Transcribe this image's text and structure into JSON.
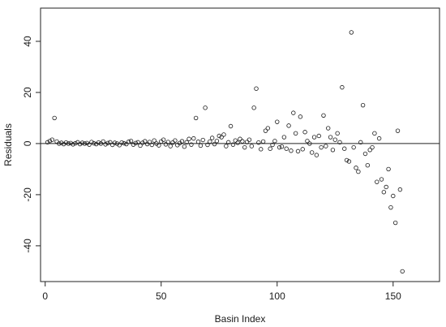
{
  "chart_data": {
    "type": "scatter",
    "title": "",
    "xlabel": "Basin Index",
    "ylabel": "Residuals",
    "xlim": [
      -2,
      170
    ],
    "ylim": [
      -54,
      53
    ],
    "grid": false,
    "legend": "none",
    "marker": "open-circle",
    "reference_line_y": 0,
    "x_ticks": [
      0,
      50,
      100,
      150
    ],
    "x_tick_labels": [
      "0",
      "50",
      "100",
      "150"
    ],
    "y_ticks": [
      -40,
      -20,
      0,
      20,
      40
    ],
    "y_tick_labels": [
      "-40",
      "-20",
      "0",
      "20",
      "40"
    ],
    "series": [
      {
        "points": [
          [
            1,
            0.5
          ],
          [
            2,
            1.0
          ],
          [
            3,
            1.5
          ],
          [
            4,
            10.0
          ],
          [
            5,
            0.8
          ],
          [
            6,
            0.0
          ],
          [
            7,
            0.3
          ],
          [
            8,
            -0.2
          ],
          [
            9,
            0.4
          ],
          [
            10,
            0.0
          ],
          [
            11,
            0.2
          ],
          [
            12,
            -0.3
          ],
          [
            13,
            0.1
          ],
          [
            14,
            0.5
          ],
          [
            15,
            -0.2
          ],
          [
            16,
            0.3
          ],
          [
            17,
            0.0
          ],
          [
            18,
            0.2
          ],
          [
            19,
            -0.4
          ],
          [
            20,
            0.6
          ],
          [
            21,
            0.1
          ],
          [
            22,
            -0.2
          ],
          [
            23,
            0.4
          ],
          [
            24,
            0.0
          ],
          [
            25,
            0.8
          ],
          [
            26,
            -0.3
          ],
          [
            27,
            0.2
          ],
          [
            28,
            0.5
          ],
          [
            29,
            -0.5
          ],
          [
            30,
            0.3
          ],
          [
            31,
            0.0
          ],
          [
            32,
            -0.6
          ],
          [
            33,
            0.4
          ],
          [
            34,
            0.1
          ],
          [
            35,
            -0.2
          ],
          [
            36,
            0.7
          ],
          [
            37,
            1.0
          ],
          [
            38,
            -0.4
          ],
          [
            39,
            0.2
          ],
          [
            40,
            0.5
          ],
          [
            41,
            -0.8
          ],
          [
            42,
            0.3
          ],
          [
            43,
            0.9
          ],
          [
            44,
            -0.2
          ],
          [
            45,
            0.6
          ],
          [
            46,
            -0.5
          ],
          [
            47,
            1.2
          ],
          [
            48,
            0.0
          ],
          [
            49,
            -0.7
          ],
          [
            50,
            0.8
          ],
          [
            51,
            1.5
          ],
          [
            52,
            -0.3
          ],
          [
            53,
            0.6
          ],
          [
            54,
            -1.0
          ],
          [
            55,
            0.4
          ],
          [
            56,
            1.2
          ],
          [
            57,
            -0.6
          ],
          [
            58,
            0.2
          ],
          [
            59,
            0.9
          ],
          [
            60,
            -1.2
          ],
          [
            61,
            0.5
          ],
          [
            62,
            1.8
          ],
          [
            63,
            -0.4
          ],
          [
            64,
            2.0
          ],
          [
            65,
            10.0
          ],
          [
            66,
            0.7
          ],
          [
            67,
            -0.8
          ],
          [
            68,
            1.4
          ],
          [
            69,
            14.0
          ],
          [
            70,
            -0.5
          ],
          [
            71,
            0.8
          ],
          [
            72,
            2.2
          ],
          [
            73,
            -0.2
          ],
          [
            74,
            1.0
          ],
          [
            75,
            3.0
          ],
          [
            76,
            2.5
          ],
          [
            77,
            3.5
          ],
          [
            78,
            -1.0
          ],
          [
            79,
            0.5
          ],
          [
            80,
            6.8
          ],
          [
            81,
            -0.4
          ],
          [
            82,
            1.2
          ],
          [
            83,
            0.3
          ],
          [
            84,
            1.8
          ],
          [
            85,
            0.9
          ],
          [
            86,
            -1.5
          ],
          [
            87,
            0.6
          ],
          [
            88,
            1.5
          ],
          [
            89,
            -1.0
          ],
          [
            90,
            14.0
          ],
          [
            91,
            21.5
          ],
          [
            92,
            0.4
          ],
          [
            93,
            -2.2
          ],
          [
            94,
            0.8
          ],
          [
            95,
            5.0
          ],
          [
            96,
            6.0
          ],
          [
            97,
            -2.0
          ],
          [
            98,
            -0.5
          ],
          [
            99,
            1.0
          ],
          [
            100,
            8.5
          ],
          [
            101,
            -1.5
          ],
          [
            102,
            -1.2
          ],
          [
            103,
            2.5
          ],
          [
            104,
            -2.0
          ],
          [
            105,
            7.0
          ],
          [
            106,
            -2.8
          ],
          [
            107,
            12.0
          ],
          [
            108,
            4.0
          ],
          [
            109,
            -3.0
          ],
          [
            110,
            10.5
          ],
          [
            111,
            -2.2
          ],
          [
            112,
            4.5
          ],
          [
            113,
            1.0
          ],
          [
            114,
            0.0
          ],
          [
            115,
            -3.5
          ],
          [
            116,
            2.5
          ],
          [
            117,
            -4.5
          ],
          [
            118,
            3.0
          ],
          [
            119,
            -1.5
          ],
          [
            120,
            11.0
          ],
          [
            121,
            -1.0
          ],
          [
            122,
            6.0
          ],
          [
            123,
            2.5
          ],
          [
            124,
            -2.5
          ],
          [
            125,
            1.5
          ],
          [
            126,
            4.0
          ],
          [
            127,
            0.5
          ],
          [
            128,
            22.0
          ],
          [
            129,
            -2.0
          ],
          [
            130,
            -6.5
          ],
          [
            131,
            -7.0
          ],
          [
            132,
            43.5
          ],
          [
            133,
            -1.5
          ],
          [
            134,
            -9.5
          ],
          [
            135,
            -11.0
          ],
          [
            136,
            0.5
          ],
          [
            137,
            15.0
          ],
          [
            138,
            -4.0
          ],
          [
            139,
            -8.5
          ],
          [
            140,
            -2.5
          ],
          [
            141,
            -1.5
          ],
          [
            142,
            4.0
          ],
          [
            143,
            -15.0
          ],
          [
            144,
            2.0
          ],
          [
            145,
            -14.0
          ],
          [
            146,
            -19.0
          ],
          [
            147,
            -17.0
          ],
          [
            148,
            -10.0
          ],
          [
            149,
            -25.0
          ],
          [
            150,
            -20.5
          ],
          [
            151,
            -31.0
          ],
          [
            152,
            5.0
          ],
          [
            153,
            -18.0
          ],
          [
            154,
            -50.0
          ]
        ]
      }
    ]
  }
}
